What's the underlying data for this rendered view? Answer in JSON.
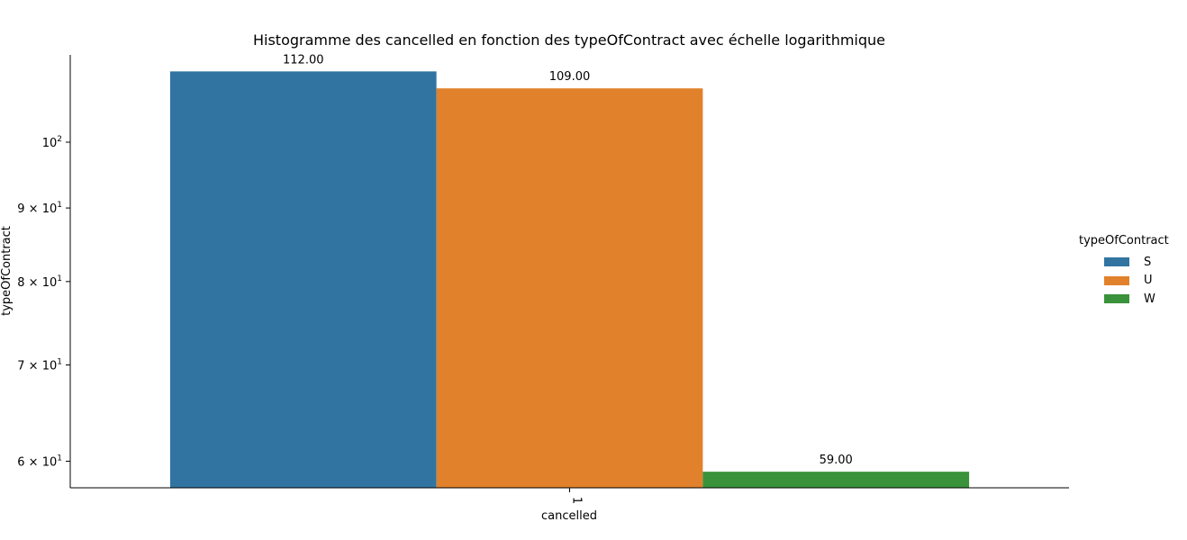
{
  "chart_data": {
    "type": "bar",
    "title": "Histogramme des cancelled en fonction des typeOfContract avec échelle logarithmique",
    "xlabel": "cancelled",
    "ylabel": "typeOfContract",
    "yscale": "log",
    "ylim": [
      57.5,
      115
    ],
    "categories": [
      "1"
    ],
    "series": [
      {
        "name": "S",
        "color": "#3274a1",
        "values": [
          112
        ],
        "label": "112.00"
      },
      {
        "name": "U",
        "color": "#e1812c",
        "values": [
          109
        ],
        "label": "109.00"
      },
      {
        "name": "W",
        "color": "#3a923a",
        "values": [
          59
        ],
        "label": "59.00"
      }
    ],
    "yticks": [
      {
        "value": 60,
        "base": "6 × 10",
        "exp": "1"
      },
      {
        "value": 70,
        "base": "7 × 10",
        "exp": "1"
      },
      {
        "value": 80,
        "base": "8 × 10",
        "exp": "1"
      },
      {
        "value": 90,
        "base": "9 × 10",
        "exp": "1"
      },
      {
        "value": 100,
        "base": "10",
        "exp": "2"
      }
    ],
    "legend": {
      "title": "typeOfContract",
      "position": "right"
    },
    "grid": false
  }
}
